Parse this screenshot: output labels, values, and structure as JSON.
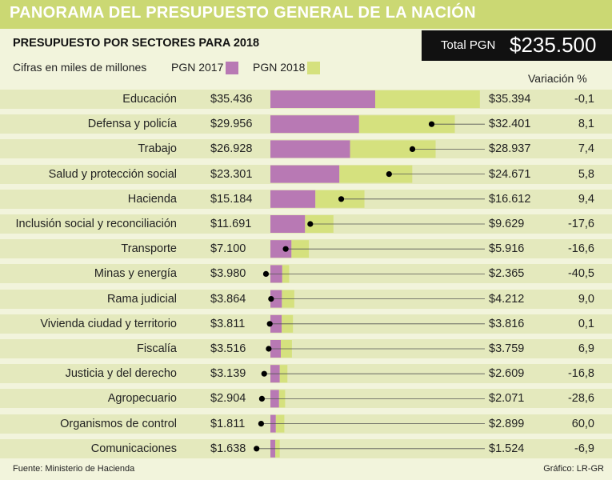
{
  "header": {
    "title": "PANORAMA DEL PRESUPUESTO GENERAL DE LA NACIÓN",
    "subtitle": "PRESUPUESTO POR SECTORES PARA 2018",
    "units_note": "Cifras en miles de millones",
    "total_label": "Total PGN",
    "total_value": "$235.500"
  },
  "legend": {
    "pgn2017_label": "PGN 2017",
    "pgn2018_label": "PGN 2018"
  },
  "variation_header": "Variación %",
  "colors": {
    "pgn2017": "#b879b4",
    "pgn2018": "#d5e17e",
    "title_bar": "#cbd873",
    "row_band": "#e4e9bd",
    "background": "#f2f4dc"
  },
  "footer": {
    "source": "Fuente: Ministerio de Hacienda",
    "credit": "Gráfico: LR-GR"
  },
  "chart_data": {
    "type": "bar",
    "categories": [
      "Educación",
      "Defensa y policía",
      "Trabajo",
      "Salud y protección social",
      "Hacienda",
      "Inclusión social y reconciliación",
      "Transporte",
      "Minas y energía",
      "Rama judicial",
      "Vivienda ciudad y territorio",
      "Fiscalía",
      "Justicia y del derecho",
      "Agropecuario",
      "Organismos de control",
      "Comunicaciones"
    ],
    "series": [
      {
        "name": "PGN 2017",
        "values": [
          35436,
          29956,
          26928,
          23301,
          15184,
          11691,
          7100,
          3980,
          3864,
          3811,
          3516,
          3139,
          2904,
          1811,
          1638
        ],
        "labels": [
          "$35.436",
          "$29.956",
          "$26.928",
          "$23.301",
          "$15.184",
          "$11.691",
          "$7.100",
          "$3.980",
          "$3.864",
          "$3.811",
          "$3.516",
          "$3.139",
          "$2.904",
          "$1.811",
          "$1.638"
        ]
      },
      {
        "name": "PGN 2018",
        "values": [
          35394,
          32401,
          28937,
          24671,
          16612,
          9629,
          5916,
          2365,
          4212,
          3816,
          3759,
          2609,
          2071,
          2899,
          1524
        ],
        "labels": [
          "$35.394",
          "$32.401",
          "$28.937",
          "$24.671",
          "$16.612",
          "$9.629",
          "$5.916",
          "$2.365",
          "$4.212",
          "$3.816",
          "$3.759",
          "$2.609",
          "$2.071",
          "$2.899",
          "$1.524"
        ]
      }
    ],
    "variation": [
      "-0,1",
      "8,1",
      "7,4",
      "5,8",
      "9,4",
      "-17,6",
      "-16,6",
      "-40,5",
      "9,0",
      "0,1",
      "6,9",
      "-16,8",
      "-28,6",
      "60,0",
      "-6,9"
    ]
  }
}
